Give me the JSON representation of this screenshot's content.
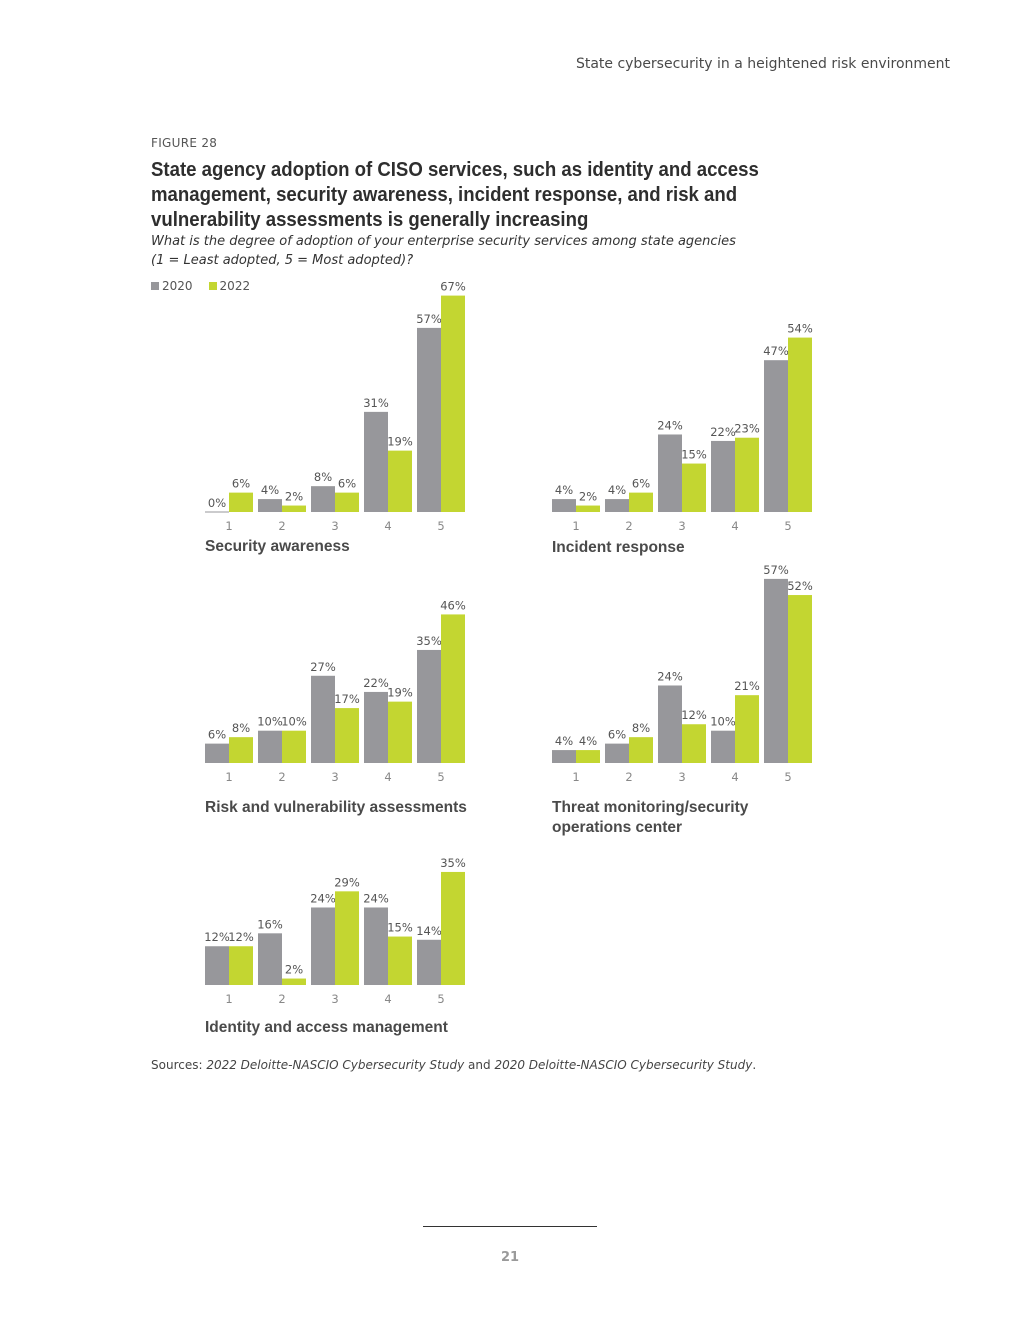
{
  "header": {
    "running_title": "State cybersecurity in a heightened risk environment"
  },
  "figure": {
    "label": "FIGURE 28",
    "title": "State agency adoption of CISO services, such as identity and access management, security awareness, incident response, and risk and vulnerability assessments is generally increasing",
    "subtitle_line1": "What is the degree of adoption of your enterprise security services among state agencies",
    "subtitle_line2": "(1 = Least adopted, 5 = Most adopted)?"
  },
  "legend": [
    {
      "label": "2020",
      "color": "#97979b"
    },
    {
      "label": "2022",
      "color": "#c3d631"
    }
  ],
  "chart_data": [
    {
      "type": "bar",
      "title_lines": [
        "Security awareness"
      ],
      "categories": [
        "1",
        "2",
        "3",
        "4",
        "5"
      ],
      "series": [
        {
          "name": "2020",
          "values": [
            0,
            4,
            8,
            31,
            57
          ]
        },
        {
          "name": "2022",
          "values": [
            6,
            2,
            6,
            19,
            67
          ]
        }
      ],
      "ylabel": "",
      "xlabel": ""
    },
    {
      "type": "bar",
      "title_lines": [
        "Incident response"
      ],
      "categories": [
        "1",
        "2",
        "3",
        "4",
        "5"
      ],
      "series": [
        {
          "name": "2020",
          "values": [
            4,
            4,
            24,
            22,
            47
          ]
        },
        {
          "name": "2022",
          "values": [
            2,
            6,
            15,
            23,
            54
          ]
        }
      ],
      "ylabel": "",
      "xlabel": ""
    },
    {
      "type": "bar",
      "title_lines": [
        "Risk and vulnerability assessments"
      ],
      "categories": [
        "1",
        "2",
        "3",
        "4",
        "5"
      ],
      "series": [
        {
          "name": "2020",
          "values": [
            6,
            10,
            27,
            22,
            35
          ]
        },
        {
          "name": "2022",
          "values": [
            8,
            10,
            17,
            19,
            46
          ]
        }
      ],
      "ylabel": "",
      "xlabel": ""
    },
    {
      "type": "bar",
      "title_lines": [
        "Threat monitoring/security",
        "operations center"
      ],
      "categories": [
        "1",
        "2",
        "3",
        "4",
        "5"
      ],
      "series": [
        {
          "name": "2020",
          "values": [
            4,
            6,
            24,
            10,
            57
          ]
        },
        {
          "name": "2022",
          "values": [
            4,
            8,
            12,
            21,
            52
          ]
        }
      ],
      "ylabel": "",
      "xlabel": ""
    },
    {
      "type": "bar",
      "title_lines": [
        "Identity and access management"
      ],
      "categories": [
        "1",
        "2",
        "3",
        "4",
        "5"
      ],
      "series": [
        {
          "name": "2020",
          "values": [
            12,
            16,
            24,
            24,
            14
          ]
        },
        {
          "name": "2022",
          "values": [
            12,
            2,
            29,
            15,
            35
          ]
        }
      ],
      "ylabel": "",
      "xlabel": ""
    }
  ],
  "sources": {
    "prefix": "Sources: ",
    "study_2022": "2022 Deloitte-NASCIO Cybersecurity Study",
    "conjunction": " and ",
    "study_2020": "2020 Deloitte-NASCIO Cybersecurity Study",
    "suffix": "."
  },
  "footer": {
    "page_number": "21"
  }
}
